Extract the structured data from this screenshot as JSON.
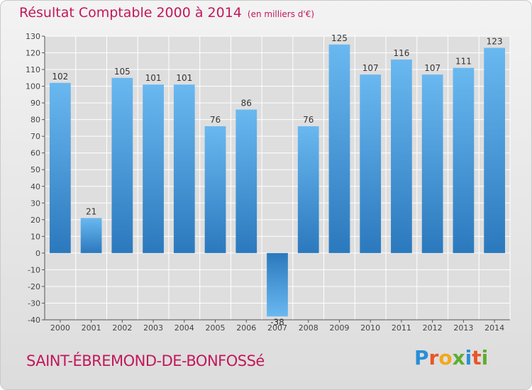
{
  "header": {
    "title": "Résultat Comptable 2000 à 2014",
    "subtitle": "(en milliers d'€)"
  },
  "footer": {
    "commune": "SAINT-ÉBREMOND-DE-BONFOSSé",
    "logo": {
      "text": "Proxiti",
      "letters": [
        "P",
        "r",
        "o",
        "x",
        "i",
        "t",
        "i"
      ],
      "colors": [
        "#2a8fd6",
        "#e8552a",
        "#f2a81d",
        "#5cae2f",
        "#2a8fd6",
        "#e8552a",
        "#5cae2f"
      ]
    }
  },
  "chart_data": {
    "type": "bar",
    "title": "Résultat Comptable 2000 à 2014",
    "ylabel": "",
    "xlabel": "",
    "categories": [
      "2000",
      "2001",
      "2002",
      "2003",
      "2004",
      "2005",
      "2006",
      "2007",
      "2008",
      "2009",
      "2010",
      "2011",
      "2012",
      "2013",
      "2014"
    ],
    "values": [
      102,
      21,
      105,
      101,
      101,
      76,
      86,
      -38,
      76,
      125,
      107,
      116,
      107,
      111,
      123
    ],
    "ylim": [
      -40,
      130
    ],
    "yticks": [
      130,
      120,
      110,
      100,
      90,
      80,
      70,
      60,
      50,
      40,
      30,
      20,
      10,
      0,
      -10,
      -20,
      -30,
      -40
    ],
    "grid": true,
    "colors": {
      "bar": "#3e95d8",
      "bar_light": "#64b4ee",
      "bar_dark": "#2c7cc0",
      "grid": "#ffffff",
      "axis": "#555555"
    }
  }
}
